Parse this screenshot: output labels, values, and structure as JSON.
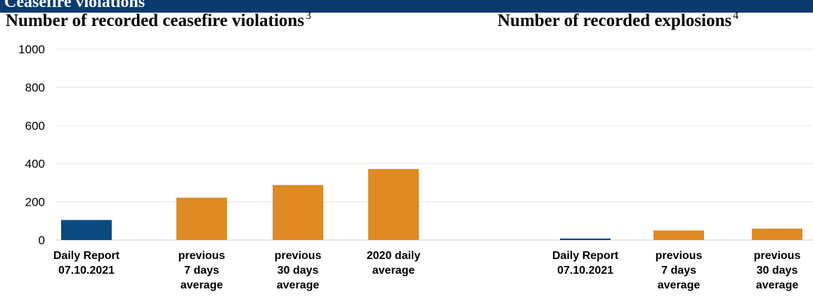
{
  "header": {
    "section_title": "Ceasefire violations"
  },
  "colors": {
    "banner": "#0b3a6e",
    "current": "#0b4a80",
    "average": "#e08a23",
    "grid": "#e6e6e6"
  },
  "chart_data": [
    {
      "type": "bar",
      "title": "Number of recorded ceasefire violations",
      "footnote": "3",
      "categories": [
        [
          "Daily Report",
          "07.10.2021"
        ],
        [
          "previous",
          "7 days",
          "average"
        ],
        [
          "previous",
          "30 days",
          "average"
        ],
        [
          "2020 daily",
          "average"
        ]
      ],
      "values": [
        105,
        222,
        288,
        372
      ],
      "ylim": [
        0,
        1000
      ],
      "yticks": [
        0,
        200,
        400,
        600,
        800,
        1000
      ],
      "grid": true
    },
    {
      "type": "bar",
      "title": "Number of recorded explosions",
      "footnote": "4",
      "categories": [
        [
          "Daily Report",
          "07.10.2021"
        ],
        [
          "previous",
          "7 days",
          "average"
        ],
        [
          "previous",
          "30 days",
          "average"
        ]
      ],
      "values": [
        8,
        50,
        60
      ],
      "ylim": [
        0,
        1000
      ],
      "grid": true
    }
  ]
}
